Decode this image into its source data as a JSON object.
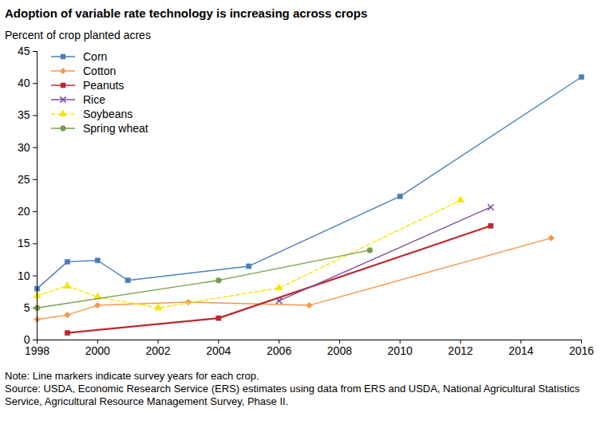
{
  "chart_data": {
    "type": "line",
    "title": "Adoption of variable rate technology is increasing across crops",
    "y_label": "Percent of crop planted acres",
    "note": "Note: Line markers indicate survey years for each crop.",
    "source": "Source: USDA, Economic Research Service (ERS) estimates using data from ERS and USDA, National Agricultural Statistics Service, Agricultural Resource Management Survey, Phase II.",
    "xlim": [
      1998,
      2016
    ],
    "xticks": [
      1998,
      2000,
      2002,
      2004,
      2006,
      2008,
      2010,
      2012,
      2014,
      2016
    ],
    "ylim": [
      0,
      45
    ],
    "yticks": [
      0,
      5,
      10,
      15,
      20,
      25,
      30,
      35,
      40,
      45
    ],
    "grid": false,
    "legend": "top-left",
    "series": [
      {
        "name": "Corn",
        "color": "#4a7ebb",
        "marker": "square",
        "line_style": "solid",
        "x": [
          1998,
          1999,
          2000,
          2001,
          2005,
          2010,
          2016
        ],
        "values": [
          8.0,
          12.2,
          12.4,
          9.3,
          11.5,
          22.4,
          41.0
        ]
      },
      {
        "name": "Cotton",
        "color": "#f79646",
        "marker": "diamond",
        "line_style": "solid",
        "x": [
          1998,
          1999,
          2000,
          2003,
          2007,
          2015
        ],
        "values": [
          3.2,
          3.9,
          5.4,
          5.9,
          5.4,
          15.9
        ]
      },
      {
        "name": "Peanuts",
        "color": "#c0272d",
        "marker": "square",
        "line_style": "solid",
        "x": [
          1999,
          2004,
          2013
        ],
        "values": [
          1.1,
          3.4,
          17.8
        ]
      },
      {
        "name": "Rice",
        "color": "#7f4f9f",
        "marker": "x",
        "line_style": "solid",
        "x": [
          2006,
          2013
        ],
        "values": [
          6.1,
          20.7
        ]
      },
      {
        "name": "Soybeans",
        "color": "#f5e600",
        "marker": "triangle",
        "line_style": "dashed",
        "x": [
          1998,
          1999,
          2000,
          2002,
          2006,
          2012
        ],
        "values": [
          6.9,
          8.4,
          6.7,
          5.0,
          8.1,
          21.8
        ]
      },
      {
        "name": "Spring wheat",
        "color": "#77a04a",
        "marker": "circle",
        "line_style": "solid",
        "x": [
          1998,
          2004,
          2009
        ],
        "values": [
          5.0,
          9.3,
          14.0
        ]
      }
    ]
  }
}
